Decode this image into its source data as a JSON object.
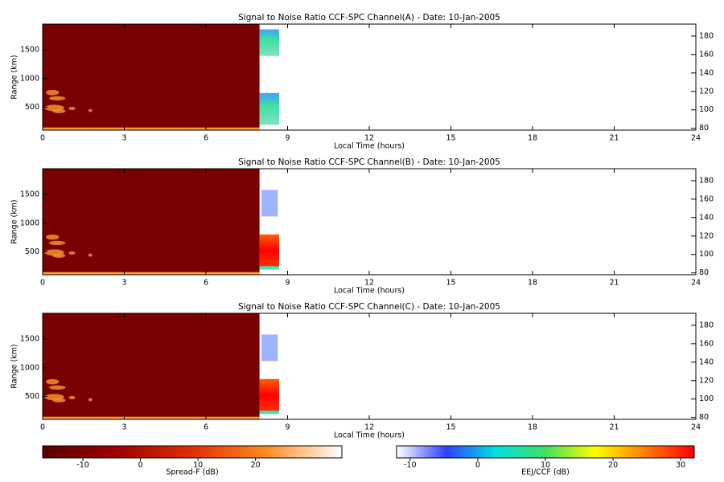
{
  "chart_data": [
    {
      "type": "heatmap",
      "title": "Signal to Noise Ratio CCF-SPC Channel(A) - Date: 10-Jan-2005",
      "xlabel": "Local Time (hours)",
      "ylabel": "Range (km)",
      "xlim": [
        0,
        24
      ],
      "xticks": [
        0,
        3,
        6,
        9,
        12,
        15,
        18,
        21,
        24
      ],
      "ylim": [
        100,
        1950
      ],
      "yticks": [
        500,
        1000,
        1500
      ],
      "y2lim": [
        78,
        193
      ],
      "y2ticks": [
        80,
        100,
        120,
        140,
        160,
        180
      ]
    },
    {
      "type": "heatmap",
      "title": "Signal to Noise Ratio CCF-SPC Channel(B) - Date: 10-Jan-2005",
      "xlabel": "Local Time (hours)",
      "ylabel": "Range (km)",
      "xlim": [
        0,
        24
      ],
      "xticks": [
        0,
        3,
        6,
        9,
        12,
        15,
        18,
        21,
        24
      ],
      "ylim": [
        100,
        1950
      ],
      "yticks": [
        500,
        1000,
        1500
      ],
      "y2lim": [
        78,
        193
      ],
      "y2ticks": [
        80,
        100,
        120,
        140,
        160,
        180
      ]
    },
    {
      "type": "heatmap",
      "title": "Signal to Noise Ratio CCF-SPC Channel(C) - Date: 10-Jan-2005",
      "xlabel": "Local Time (hours)",
      "ylabel": "Range (km)",
      "xlim": [
        0,
        24
      ],
      "xticks": [
        0,
        3,
        6,
        9,
        12,
        15,
        18,
        21,
        24
      ],
      "ylim": [
        100,
        1950
      ],
      "yticks": [
        500,
        1000,
        1500
      ],
      "y2lim": [
        78,
        193
      ],
      "y2ticks": [
        80,
        100,
        120,
        140,
        160,
        180
      ]
    },
    {
      "type": "colorbar",
      "xlabel": "Spread-F (dB)",
      "xlim": [
        -17,
        35
      ],
      "xticks": [
        -10,
        0,
        10,
        20
      ],
      "colors": [
        "#5a0000",
        "#a00000",
        "#e03000",
        "#ff8c20",
        "#ffffff"
      ]
    },
    {
      "type": "colorbar",
      "xlabel": "EEJ/CCF (dB)",
      "xlim": [
        -12,
        32
      ],
      "xticks": [
        -10,
        0,
        10,
        20,
        30
      ],
      "colors": [
        "#ffffff",
        "#3040ff",
        "#00e0e0",
        "#40e060",
        "#ffff00",
        "#ff8000",
        "#ff0000"
      ]
    }
  ]
}
